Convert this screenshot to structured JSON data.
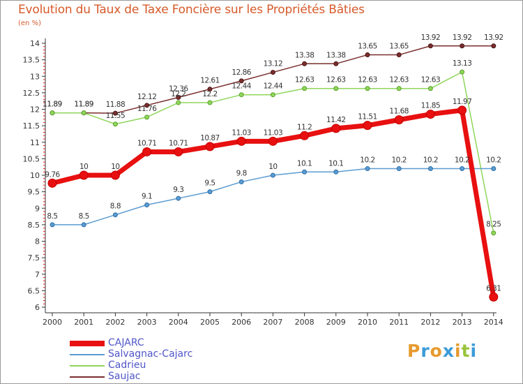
{
  "header": {
    "title": "Evolution du Taux de Taxe Foncière sur les Propriétés Bâties",
    "unit": "(en %)"
  },
  "logo": {
    "text": "Proxiti",
    "letters": [
      "P",
      "r",
      "o",
      "x",
      "i",
      "t",
      "i"
    ],
    "colors": [
      "#e69a2e",
      "#3b9bd8",
      "#e69a2e",
      "#3b9bd8",
      "#e69a2e",
      "#9bc43b",
      "#3b9bd8"
    ]
  },
  "chart_data": {
    "type": "line",
    "title": "Evolution du Taux de Taxe Foncière sur les Propriétés Bâties",
    "ylabel": "(en %)",
    "xlabel": "",
    "x": [
      "2000",
      "2001",
      "2002",
      "2003",
      "2004",
      "2005",
      "2006",
      "2007",
      "2008",
      "2009",
      "2010",
      "2011",
      "2012",
      "2013",
      "2014"
    ],
    "ylim": [
      6,
      14
    ],
    "yticks": [
      "6",
      "6.5",
      "7",
      "7.5",
      "8",
      "8.5",
      "9",
      "9.5",
      "10",
      "10.5",
      "11",
      "11.5",
      "12",
      "12.5",
      "13",
      "13.5",
      "14"
    ],
    "grid": false,
    "series": [
      {
        "name": "CAJARC",
        "color": "#e81010",
        "values": [
          9.76,
          10,
          10,
          10.71,
          10.71,
          10.87,
          11.03,
          11.03,
          11.2,
          11.42,
          11.51,
          11.68,
          11.85,
          11.97,
          6.31
        ],
        "labels": [
          "9.76",
          "10",
          "10",
          "10.71",
          "10.71",
          "10.87",
          "11.03",
          "11.03",
          "11.2",
          "11.42",
          "11.51",
          "11.68",
          "11.85",
          "11.97",
          "6.31"
        ]
      },
      {
        "name": "Salvagnac-Cajarc",
        "color": "#5b9bd0",
        "values": [
          8.5,
          8.5,
          8.8,
          9.1,
          9.3,
          9.5,
          9.8,
          10,
          10.1,
          10.1,
          10.2,
          10.2,
          10.2,
          10.2,
          10.2
        ],
        "labels": [
          "8.5",
          "8.5",
          "8.8",
          "9.1",
          "9.3",
          "9.5",
          "9.8",
          "10",
          "10.1",
          "10.1",
          "10.2",
          "10.2",
          "10.2",
          "10.2",
          "10.2"
        ]
      },
      {
        "name": "Cadrieu",
        "color": "#8fd65a",
        "values": [
          11.89,
          11.89,
          11.55,
          11.76,
          12.2,
          12.2,
          12.44,
          12.44,
          12.63,
          12.63,
          12.63,
          12.63,
          12.63,
          13.13,
          8.25
        ],
        "labels": [
          "11.89",
          "11.89",
          "11.55",
          "11.76",
          "12.2",
          "12.2",
          "12.44",
          "12.44",
          "12.63",
          "12.63",
          "12.63",
          "12.63",
          "12.63",
          "13.13",
          "8.25"
        ]
      },
      {
        "name": "Saujac",
        "color": "#7a2e2e",
        "values": [
          11.89,
          11.89,
          11.88,
          12.12,
          12.36,
          12.61,
          12.86,
          13.12,
          13.38,
          13.38,
          13.65,
          13.65,
          13.92,
          13.92,
          13.92
        ],
        "labels": [
          "11.89",
          "11.89",
          "11.88",
          "12.12",
          "12.36",
          "12.61",
          "12.86",
          "13.12",
          "13.38",
          "13.38",
          "13.65",
          "13.65",
          "13.92",
          "13.92",
          "13.92"
        ]
      }
    ]
  },
  "legend": {
    "position": "bottom-left",
    "items": [
      {
        "label": "CAJARC",
        "color": "#e81010"
      },
      {
        "label": "Salvagnac-Cajarc",
        "color": "#5b9bd0"
      },
      {
        "label": "Cadrieu",
        "color": "#8fd65a"
      },
      {
        "label": "Saujac",
        "color": "#7a2e2e"
      }
    ]
  }
}
